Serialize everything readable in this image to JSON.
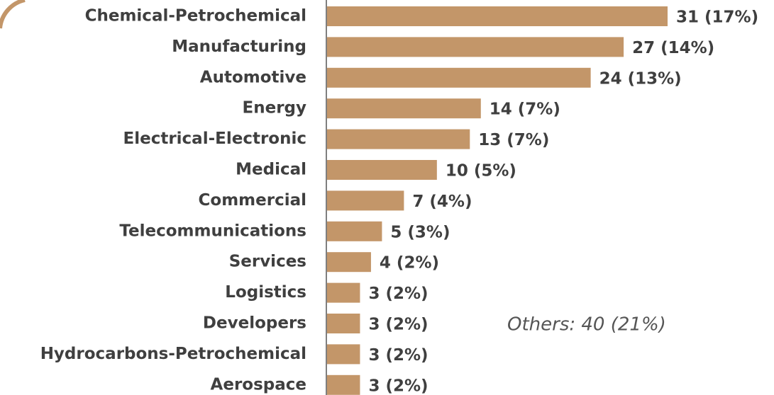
{
  "chart_data": {
    "type": "bar",
    "orientation": "horizontal",
    "categories": [
      "Chemical-Petrochemical",
      "Manufacturing",
      "Automotive",
      "Energy",
      "Electrical-Electronic",
      "Medical",
      "Commercial",
      "Telecommunications",
      "Services",
      "Logistics",
      "Developers",
      "Hydrocarbons-Petrochemical",
      "Aerospace"
    ],
    "values": [
      31,
      27,
      24,
      14,
      13,
      10,
      7,
      5,
      4,
      3,
      3,
      3,
      3
    ],
    "value_labels": [
      "31 (17%)",
      "27 (14%)",
      "24 (13%)",
      "14 (7%)",
      "13 (7%)",
      "10 (5%)",
      "7 (4%)",
      "5 (3%)",
      "4 (2%)",
      "3 (2%)",
      "3 (2%)",
      "3 (2%)",
      "3 (2%)"
    ],
    "color": "#c39669",
    "annotation": "Others: 40 (21%)"
  }
}
